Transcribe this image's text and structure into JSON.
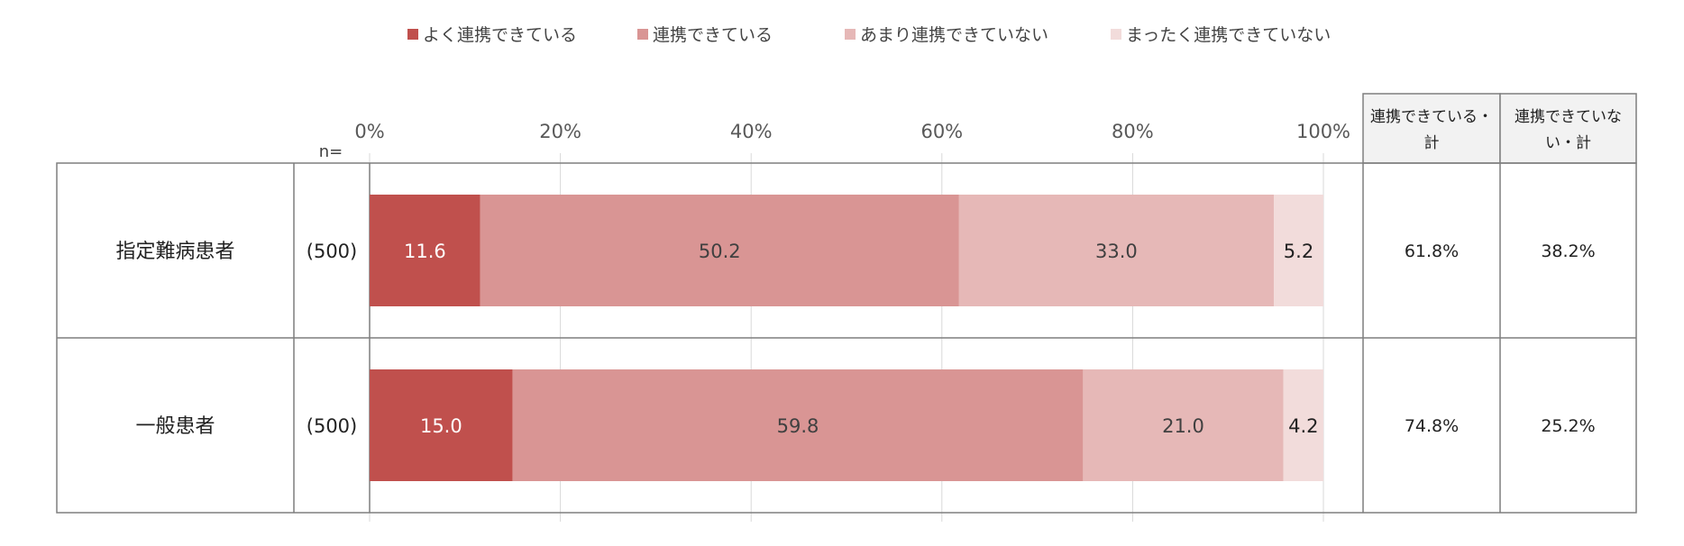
{
  "colors": {
    "series": [
      "#c0504d",
      "#d99594",
      "#e6b8b7",
      "#f2dcdb"
    ],
    "grid": "#d9d9d9",
    "border": "#7f7f7f",
    "header_bg": "#f2f2f2",
    "label_light": "#ffffff",
    "label_dark": "#404040"
  },
  "legend": {
    "items": [
      "よく連携できている",
      "連携できている",
      "あまり連携できていない",
      "まったく連携できていない"
    ]
  },
  "n_label": "n=",
  "summary_headers": [
    "連携できている・計",
    "連携できていない・計"
  ],
  "chart_data": {
    "type": "bar",
    "orientation": "horizontal",
    "stacked": true,
    "categories": [
      "指定難病患者",
      "一般患者"
    ],
    "n": [
      "(500)",
      "(500)"
    ],
    "series": [
      {
        "name": "よく連携できている",
        "values": [
          11.6,
          15.0
        ]
      },
      {
        "name": "連携できている",
        "values": [
          50.2,
          59.8
        ]
      },
      {
        "name": "あまり連携できていない",
        "values": [
          33.0,
          21.0
        ]
      },
      {
        "name": "まったく連携できていない",
        "values": [
          5.2,
          4.2
        ]
      }
    ],
    "data_labels": [
      [
        "11.6",
        "50.2",
        "33.0",
        "5.2"
      ],
      [
        "15.0",
        "59.8",
        "21.0",
        "4.2"
      ]
    ],
    "summary": [
      [
        "61.8%",
        "38.2%"
      ],
      [
        "74.8%",
        "25.2%"
      ]
    ],
    "xlim": [
      0,
      100
    ],
    "xticks": [
      "0%",
      "20%",
      "40%",
      "60%",
      "80%",
      "100%"
    ],
    "grid": true,
    "legend_position": "top"
  }
}
